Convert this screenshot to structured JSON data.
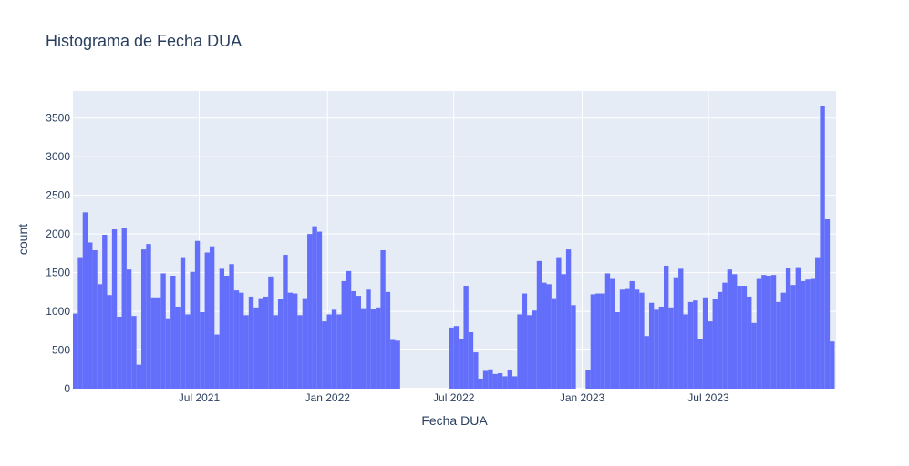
{
  "chart_data": {
    "type": "bar",
    "title": "Histograma de Fecha DUA",
    "xlabel": "Fecha DUA",
    "ylabel": "count",
    "ylim": [
      0,
      3850
    ],
    "yticks": [
      0,
      500,
      1000,
      1500,
      2000,
      2500,
      3000,
      3500
    ],
    "xlim": [
      "2021-01-01",
      "2023-12-31"
    ],
    "xticks": [
      {
        "date": "2021-07-01",
        "label": "Jul 2021"
      },
      {
        "date": "2022-01-01",
        "label": "Jan 2022"
      },
      {
        "date": "2022-07-01",
        "label": "Jul 2022"
      },
      {
        "date": "2023-01-01",
        "label": "Jan 2023"
      },
      {
        "date": "2023-07-01",
        "label": "Jul 2023"
      }
    ],
    "bin": "weekly",
    "bar_color": "#636efa",
    "grid": true,
    "series": [
      {
        "start": "2021-01-01",
        "values": [
          970,
          1700,
          2280,
          1890,
          1790,
          1350,
          1990,
          1210,
          2060,
          930,
          2080,
          1540,
          940,
          310,
          1800,
          1870,
          1180,
          1180,
          1490,
          910,
          1460,
          1060,
          1700,
          960,
          1510,
          1910,
          990,
          1760,
          1840,
          700,
          1550,
          1460,
          1610,
          1270,
          1240,
          950,
          1190,
          1050,
          1170,
          1190,
          1450,
          950,
          1160,
          1730,
          1240,
          1230,
          950,
          1170,
          2000,
          2100,
          2030,
          870,
          960,
          1020,
          960,
          1390,
          1520,
          1260,
          1200,
          1040,
          1280,
          1030,
          1050,
          1790,
          1250,
          630,
          620
        ]
      },
      {
        "start": "2022-06-24",
        "values": [
          790,
          810,
          640,
          1330,
          730,
          470,
          130,
          230,
          250,
          190,
          200,
          160,
          240,
          160,
          960,
          1230,
          950,
          1010,
          1650,
          1370,
          1350,
          1170,
          1700,
          1480,
          1800,
          1080
        ]
      },
      {
        "start": "2023-01-06",
        "values": [
          240,
          1220,
          1230,
          1230,
          1490,
          1430,
          990,
          1280,
          1300,
          1390,
          1280,
          1240,
          680,
          1110,
          1020,
          1060,
          1590,
          1050,
          1440,
          1550,
          960,
          1120,
          1140,
          640,
          1180,
          870,
          1160,
          1250,
          1370,
          1540,
          1480,
          1330,
          1330,
          1190,
          850,
          1430,
          1470,
          1460,
          1470,
          1120,
          1240,
          1560,
          1340,
          1570,
          1390,
          1410,
          1430,
          1700,
          3660,
          2190,
          610
        ]
      }
    ]
  }
}
